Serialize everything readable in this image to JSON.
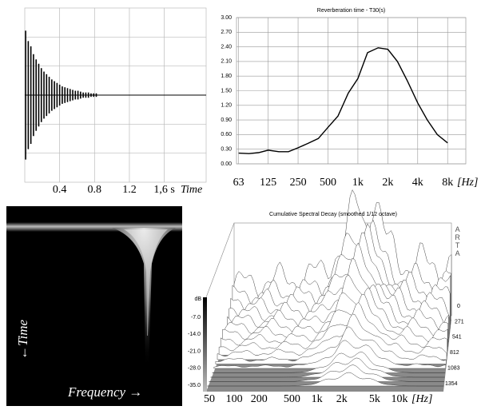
{
  "chart_data": [
    {
      "type": "impulse",
      "x": [
        0.01,
        0.04,
        0.07,
        0.1,
        0.13,
        0.16,
        0.19,
        0.22,
        0.25,
        0.28,
        0.31,
        0.34,
        0.37,
        0.4,
        0.43,
        0.46,
        0.49,
        0.52,
        0.55,
        0.58,
        0.61,
        0.64,
        0.67,
        0.7,
        0.73,
        0.76,
        0.79,
        0.82
      ],
      "values": [
        0.74,
        0.62,
        0.56,
        0.47,
        0.41,
        0.36,
        0.31,
        0.27,
        0.24,
        0.21,
        0.18,
        0.16,
        0.14,
        0.12,
        0.1,
        0.09,
        0.08,
        0.07,
        0.06,
        0.05,
        0.05,
        0.04,
        0.03,
        0.03,
        0.03,
        0.02,
        0.02,
        0.02
      ],
      "xlim": [
        0,
        2.08
      ],
      "ylim": [
        -1,
        1
      ],
      "xticks": [
        0.4,
        0.8,
        1.2,
        {
          "value": 1.6,
          "label": "1,6 s"
        }
      ],
      "x_label": "Time",
      "color": "#000000",
      "grid": true
    },
    {
      "type": "line",
      "title": "Reverberation time - T30(s)",
      "x": [
        63,
        80,
        100,
        125,
        160,
        200,
        250,
        315,
        400,
        500,
        630,
        800,
        1000,
        1250,
        1600,
        2000,
        2500,
        3150,
        4000,
        5000,
        6300,
        8000
      ],
      "values": [
        0.22,
        0.21,
        0.23,
        0.28,
        0.25,
        0.25,
        0.33,
        0.42,
        0.52,
        0.75,
        0.98,
        1.45,
        1.75,
        2.28,
        2.38,
        2.35,
        2.1,
        1.7,
        1.25,
        0.9,
        0.6,
        0.43
      ],
      "xlim": [
        60,
        12200
      ],
      "log_x": true,
      "xticks": [
        63,
        125,
        250,
        500,
        {
          "value": 1000,
          "label": "1k"
        },
        {
          "value": 2000,
          "label": "2k"
        },
        {
          "value": 4000,
          "label": "4k"
        },
        {
          "value": 8000,
          "label": "8k"
        }
      ],
      "ylim": [
        0,
        3
      ],
      "yticks": [
        {
          "value": 0,
          "label": "0.00"
        },
        {
          "value": 0.3,
          "label": "0.30"
        },
        {
          "value": 0.6,
          "label": "0.60"
        },
        {
          "value": 0.9,
          "label": "0.90"
        },
        {
          "value": 1.2,
          "label": "1.20"
        },
        {
          "value": 1.5,
          "label": "1.50"
        },
        {
          "value": 1.8,
          "label": "1.80"
        },
        {
          "value": 2.1,
          "label": "2.10"
        },
        {
          "value": 2.4,
          "label": "2.40"
        },
        {
          "value": 2.7,
          "label": "2.70"
        },
        {
          "value": 3.0,
          "label": "3.00"
        }
      ],
      "x_label": "[Hz]",
      "color": "#000000",
      "grid": true
    },
    {
      "type": "spectrogram",
      "x_label": "Frequency →",
      "y_label": "←Time"
    },
    {
      "type": "waterfall",
      "title": "Cumulative Spectral Decay (smoothed 1/12 octave)",
      "xlim": [
        50,
        10000
      ],
      "log_x": true,
      "xticks": [
        50,
        100,
        200,
        500,
        {
          "value": 1000,
          "label": "1k"
        },
        {
          "value": 2000,
          "label": "2k"
        },
        {
          "value": 5000,
          "label": "5k"
        },
        {
          "value": 10000,
          "label": "10k"
        }
      ],
      "x_label": "[Hz]",
      "z_label": "dB",
      "zlim": [
        -7,
        -35
      ],
      "zticks": [
        {
          "value": -7,
          "label": "-7.0"
        },
        {
          "value": -14,
          "label": "-14.0"
        },
        {
          "value": -21,
          "label": "-21.0"
        },
        {
          "value": -28,
          "label": "-28.0"
        },
        {
          "value": -35,
          "label": "-35.0"
        }
      ],
      "tlim": [
        0,
        1354
      ],
      "tticks": [
        0,
        271,
        541,
        812,
        1083,
        1354
      ],
      "watermark": "ARTA"
    }
  ]
}
